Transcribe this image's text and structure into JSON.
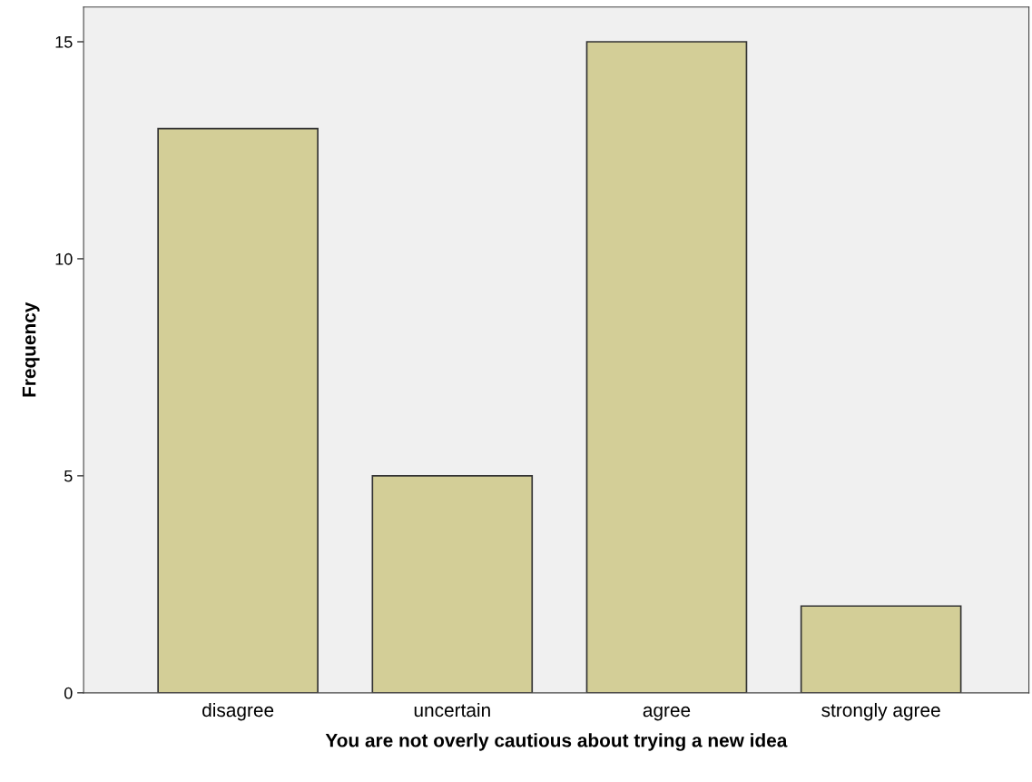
{
  "chart_data": {
    "type": "bar",
    "xlabel": "You are not overly cautious about trying a new idea",
    "ylabel": "Frequency",
    "categories": [
      "disagree",
      "uncertain",
      "agree",
      "strongly agree"
    ],
    "values": [
      13,
      5,
      15,
      2
    ],
    "color": "#d3ce97",
    "ylim": [
      0,
      15.8
    ],
    "yticks": [
      0,
      5,
      10,
      15
    ],
    "grid": false
  }
}
